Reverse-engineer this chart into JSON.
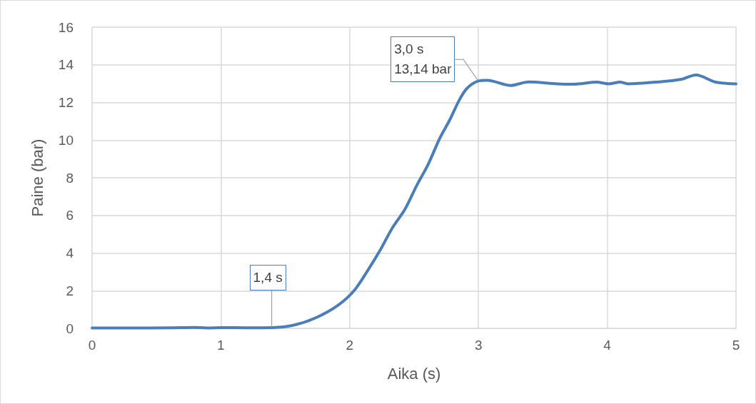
{
  "chart_data": {
    "type": "line",
    "xlabel": "Aika (s)",
    "ylabel": "Paine (bar)",
    "series": [
      {
        "color": "#4a7ebb",
        "x": [
          0,
          0.3,
          0.6,
          0.8,
          0.9,
          1.0,
          1.2,
          1.4,
          1.56,
          1.73,
          1.91,
          2.04,
          2.15,
          2.24,
          2.33,
          2.43,
          2.52,
          2.61,
          2.7,
          2.78,
          2.85,
          2.91,
          3.0,
          3.07,
          3.25,
          3.39,
          3.61,
          3.74,
          3.92,
          4.01,
          4.1,
          4.16,
          4.4,
          4.57,
          4.69,
          4.84,
          5.0
        ],
        "values": [
          0.02,
          0.02,
          0.03,
          0.05,
          0.02,
          0.04,
          0.03,
          0.04,
          0.16,
          0.54,
          1.23,
          2.05,
          3.18,
          4.19,
          5.32,
          6.33,
          7.58,
          8.72,
          10.1,
          11.11,
          12.11,
          12.74,
          13.14,
          13.18,
          12.9,
          13.09,
          12.99,
          12.97,
          13.08,
          12.99,
          13.08,
          12.99,
          13.09,
          13.22,
          13.46,
          13.08,
          12.99
        ]
      }
    ],
    "annotations": [
      {
        "text": "1,4 s",
        "x": 1.4,
        "y": 0.04
      },
      {
        "text": "3,0 s\n13,14 bar",
        "x": 3.0,
        "y": 13.14
      }
    ],
    "xlim": [
      0,
      5
    ],
    "xticks": [
      0,
      1,
      2,
      3,
      4,
      5
    ],
    "ylim": [
      0,
      16
    ],
    "yticks": [
      0,
      2,
      4,
      6,
      8,
      10,
      12,
      14,
      16
    ],
    "grid": true,
    "marker": "none",
    "line_style": "solid"
  }
}
